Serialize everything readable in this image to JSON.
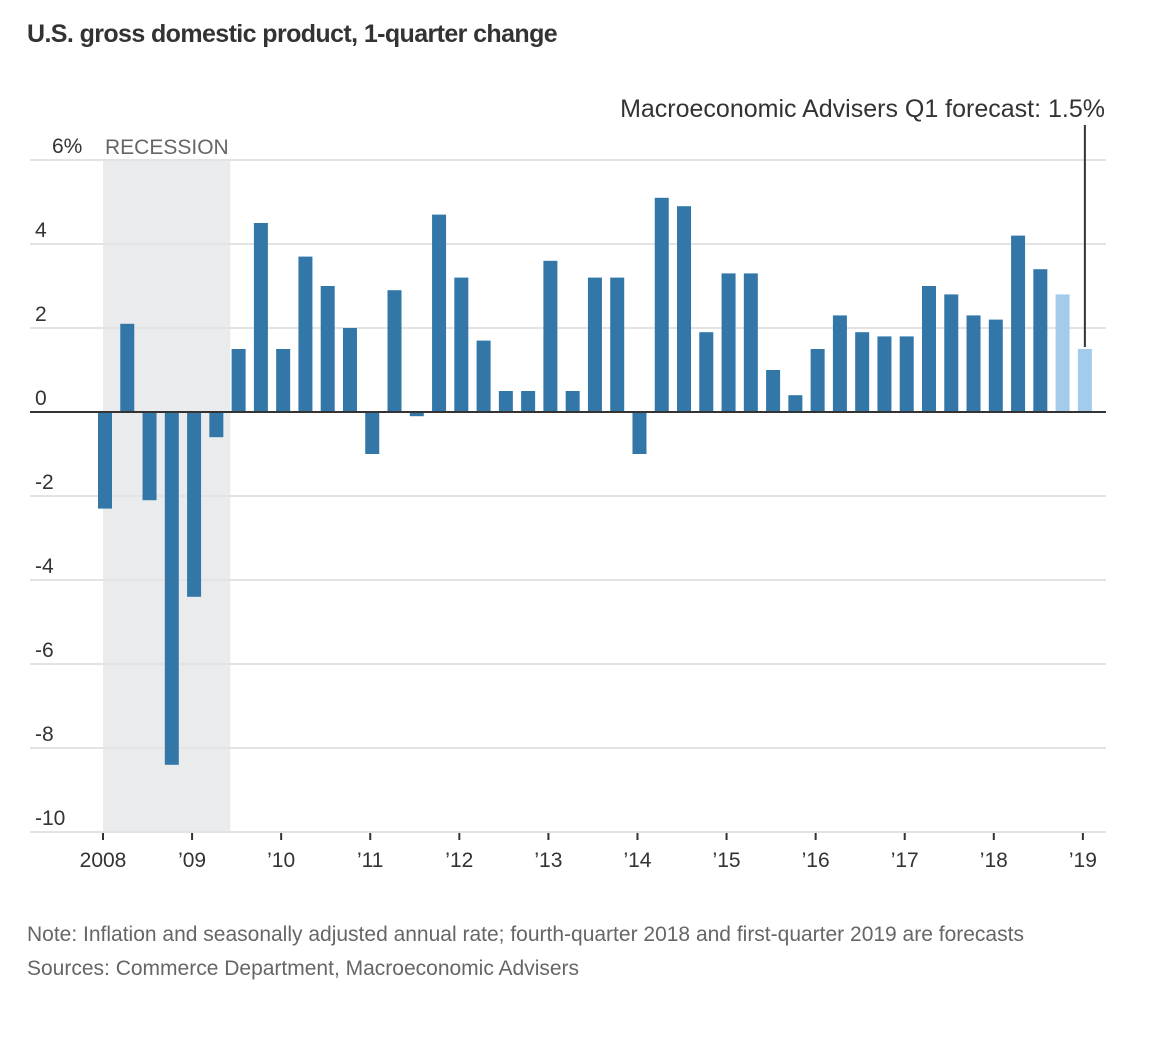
{
  "chart_data": {
    "type": "bar",
    "title": "U.S. gross domestic product, 1-quarter change",
    "xlabel": "",
    "ylabel": "",
    "ylim": [
      -10,
      6
    ],
    "yticks": [
      6,
      4,
      2,
      0,
      -2,
      -4,
      -6,
      -8,
      -10
    ],
    "ytick_labels": [
      "6%",
      "4",
      "2",
      "0",
      "-2",
      "-4",
      "-6",
      "-8",
      "-10"
    ],
    "xtick_labels": [
      "2008",
      "’09",
      "’10",
      "’11",
      "’12",
      "’13",
      "’14",
      "’15",
      "’16",
      "’17",
      "’18",
      "’19"
    ],
    "grid": true,
    "categories": [
      "2008 Q1",
      "2008 Q2",
      "2008 Q3",
      "2008 Q4",
      "2009 Q1",
      "2009 Q2",
      "2009 Q3",
      "2009 Q4",
      "2010 Q1",
      "2010 Q2",
      "2010 Q3",
      "2010 Q4",
      "2011 Q1",
      "2011 Q2",
      "2011 Q3",
      "2011 Q4",
      "2012 Q1",
      "2012 Q2",
      "2012 Q3",
      "2012 Q4",
      "2013 Q1",
      "2013 Q2",
      "2013 Q3",
      "2013 Q4",
      "2014 Q1",
      "2014 Q2",
      "2014 Q3",
      "2014 Q4",
      "2015 Q1",
      "2015 Q2",
      "2015 Q3",
      "2015 Q4",
      "2016 Q1",
      "2016 Q2",
      "2016 Q3",
      "2016 Q4",
      "2017 Q1",
      "2017 Q2",
      "2017 Q3",
      "2017 Q4",
      "2018 Q1",
      "2018 Q2",
      "2018 Q3",
      "2018 Q4",
      "2019 Q1"
    ],
    "values": [
      -2.3,
      2.1,
      -2.1,
      -8.4,
      -4.4,
      -0.6,
      1.5,
      4.5,
      1.5,
      3.7,
      3.0,
      2.0,
      -1.0,
      2.9,
      -0.1,
      4.7,
      3.2,
      1.7,
      0.5,
      0.5,
      3.6,
      0.5,
      3.2,
      3.2,
      -1.0,
      5.1,
      4.9,
      1.9,
      3.3,
      3.3,
      1.0,
      0.4,
      1.5,
      2.3,
      1.9,
      1.8,
      1.8,
      3.0,
      2.8,
      2.3,
      2.2,
      4.2,
      3.4,
      2.8,
      1.5
    ],
    "forecast": [
      false,
      false,
      false,
      false,
      false,
      false,
      false,
      false,
      false,
      false,
      false,
      false,
      false,
      false,
      false,
      false,
      false,
      false,
      false,
      false,
      false,
      false,
      false,
      false,
      false,
      false,
      false,
      false,
      false,
      false,
      false,
      false,
      false,
      false,
      false,
      false,
      false,
      false,
      false,
      false,
      false,
      false,
      false,
      true,
      true
    ],
    "colors": {
      "actual": "#3277a8",
      "forecast": "#a3cbeb",
      "recession": "#eaebed",
      "grid": "#e3e3e3",
      "axis": "#333333"
    },
    "shaded_regions": [
      {
        "label": "RECESSION",
        "from": "2008 Q1",
        "to": "2009 Q2"
      }
    ],
    "annotations": [
      {
        "text": "Macroeconomic Advisers Q1 forecast: 1.5%",
        "target": "2019 Q1"
      }
    ]
  },
  "notes": {
    "note": "Note: Inflation and seasonally adjusted annual rate; fourth-quarter 2018 and first-quarter 2019 are forecasts",
    "sources": "Sources: Commerce Department, Macroeconomic Advisers"
  }
}
